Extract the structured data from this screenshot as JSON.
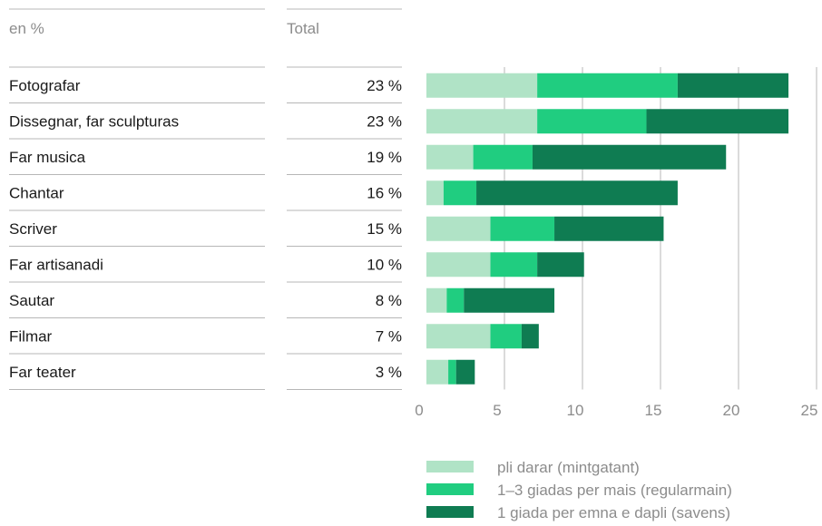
{
  "header": {
    "unit_label": "en %",
    "total_label": "Total"
  },
  "chart_data": {
    "type": "bar",
    "orientation": "horizontal",
    "stacked": true,
    "categories": [
      "Fotografar",
      "Dissegnar, far sculpturas",
      "Far musica",
      "Chantar",
      "Scriver",
      "Far artisanadi",
      "Sautar",
      "Filmar",
      "Far teater"
    ],
    "totals": [
      "23 %",
      "23 %",
      "19 %",
      "16 %",
      "15 %",
      "10 %",
      "8 %",
      "7 %",
      "3 %"
    ],
    "series": [
      {
        "name": "pli darar (mintgatant)",
        "color": "#b0e3c6",
        "values": [
          7.1,
          7.1,
          3.0,
          1.1,
          4.1,
          4.1,
          1.3,
          4.1,
          1.4
        ]
      },
      {
        "name": "1–3 giadas per mais (regularmain)",
        "color": "#20cd80",
        "values": [
          9.0,
          7.0,
          3.8,
          2.1,
          4.1,
          3.0,
          1.1,
          2.0,
          0.5
        ]
      },
      {
        "name": "1 giada per emna e dapli (savens)",
        "color": "#0f7c52",
        "values": [
          7.1,
          9.1,
          12.4,
          12.9,
          7.0,
          3.0,
          5.8,
          1.1,
          1.2
        ]
      }
    ],
    "xticks": [
      "0",
      "5",
      "10",
      "15",
      "20",
      "25"
    ],
    "xlim": [
      0,
      25
    ],
    "grid": true,
    "legend_position": "bottom"
  }
}
